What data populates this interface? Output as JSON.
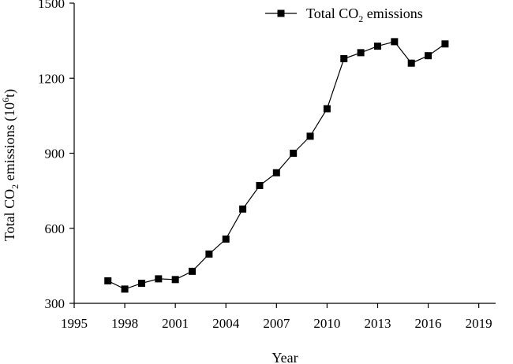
{
  "chart_data": {
    "type": "line",
    "title": "",
    "xlabel": "Year",
    "ylabel": "Total CO2 emissions (10^6 t)",
    "ylabel_parts": {
      "pre": "Total CO",
      "sub": "2",
      "mid": " emissions (10",
      "sup": "6",
      "post": "t)"
    },
    "xlim": [
      1995,
      2020
    ],
    "ylim": [
      300,
      1500
    ],
    "xticks": [
      1995,
      1998,
      2001,
      2004,
      2007,
      2010,
      2013,
      2016,
      2019
    ],
    "yticks": [
      300,
      600,
      900,
      1200,
      1500
    ],
    "grid": false,
    "legend_position": "top-right",
    "legend_parts": {
      "pre": "Total CO",
      "sub": "2",
      "post": " emissions"
    },
    "series": [
      {
        "name": "Total CO2 emissions",
        "marker": "square",
        "color": "#000000",
        "x": [
          1997,
          1998,
          1999,
          2000,
          2001,
          2002,
          2003,
          2004,
          2005,
          2006,
          2007,
          2008,
          2009,
          2010,
          2011,
          2012,
          2013,
          2014,
          2015,
          2016,
          2017
        ],
        "y": [
          390,
          357,
          380,
          398,
          395,
          428,
          497,
          557,
          677,
          771,
          822,
          900,
          968,
          1078,
          1278,
          1302,
          1328,
          1346,
          1260,
          1290,
          1337
        ]
      }
    ]
  }
}
